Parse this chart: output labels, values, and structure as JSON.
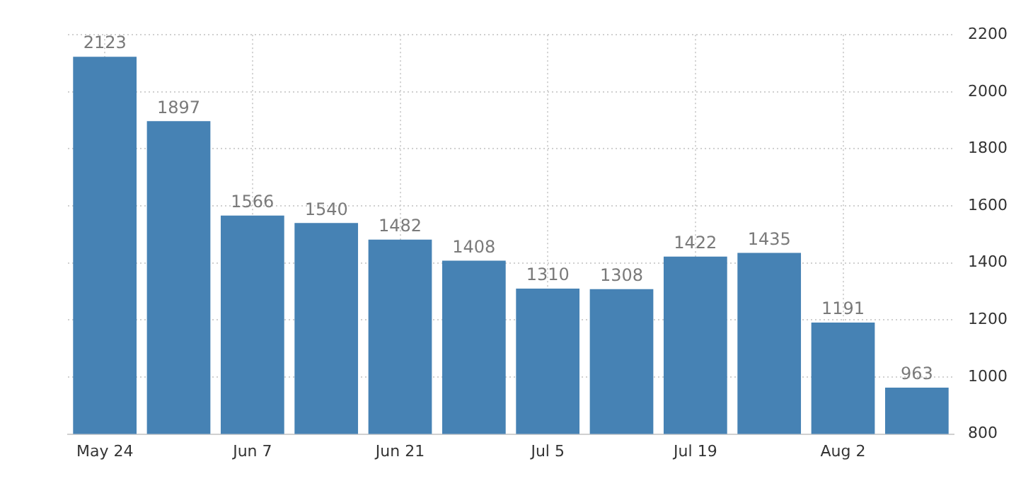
{
  "chart_data": {
    "type": "bar",
    "categories": [
      "May 24",
      null,
      "Jun 7",
      null,
      "Jun 21",
      null,
      "Jul 5",
      null,
      "Jul 19",
      null,
      "Aug 2",
      null
    ],
    "values": [
      2123,
      1897,
      1566,
      1540,
      1482,
      1408,
      1310,
      1308,
      1422,
      1435,
      1191,
      963
    ],
    "color": "#4682b4",
    "ylim": [
      800,
      2200
    ],
    "yticks": [
      800,
      1000,
      1200,
      1400,
      1600,
      1800,
      2000,
      2200
    ],
    "grid": true,
    "data_labels": true
  }
}
